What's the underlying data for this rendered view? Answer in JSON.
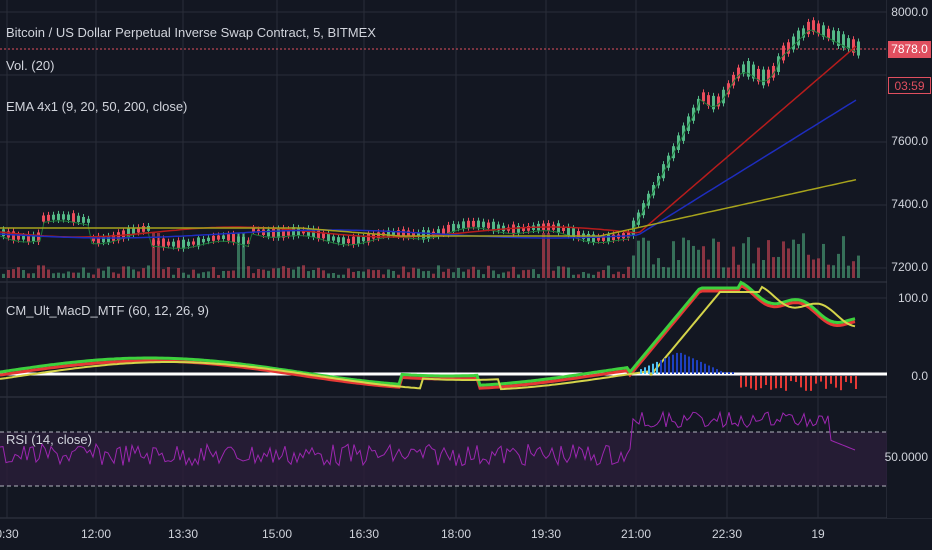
{
  "symbol": {
    "title": "Bitcoin / US Dollar Perpetual Inverse Swap Contract, 5, BITMEX"
  },
  "indicators": {
    "volume_label": "Vol. (20)",
    "ema_label": "EMA 4x1 (9, 20, 50, 200, close)",
    "macd_label": "CM_Ult_MacD_MTF (60, 12, 26, 9)",
    "rsi_label": "RSI (14, close)"
  },
  "price_axis": {
    "ticks": [
      "8000.0",
      "7600.0",
      "7400.0",
      "7200.0"
    ],
    "last_price": "7878.0",
    "countdown": "03:59"
  },
  "macd_axis": {
    "ticks": [
      "100.0",
      "0.0"
    ]
  },
  "rsi_axis": {
    "ticks": [
      "50.0000"
    ]
  },
  "time_axis": {
    "ticks": [
      "0:30",
      "12:00",
      "13:30",
      "15:00",
      "16:30",
      "18:00",
      "19:30",
      "21:00",
      "22:30",
      "19"
    ]
  },
  "colors": {
    "background": "#131722",
    "grid": "#2a2e39",
    "up": "#53b987",
    "down": "#eb4d5c",
    "ema9": "#1f7a3a",
    "ema20": "#b71c1c",
    "ema50": "#1e2dbf",
    "ema200": "#a7a31c",
    "rsi": "#9c27b0",
    "last_price": "#e04f5f"
  }
}
